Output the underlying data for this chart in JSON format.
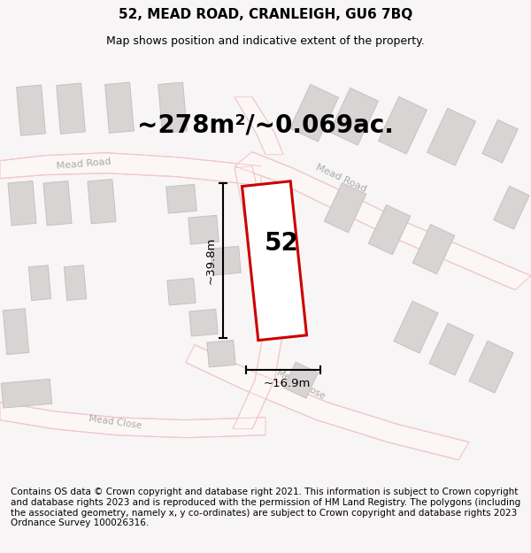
{
  "title_line1": "52, MEAD ROAD, CRANLEIGH, GU6 7BQ",
  "title_line2": "Map shows position and indicative extent of the property.",
  "area_text": "~278m²/~0.069ac.",
  "width_label": "~16.9m",
  "height_label": "~39.8m",
  "number_label": "52",
  "footer_text": "Contains OS data © Crown copyright and database right 2021. This information is subject to Crown copyright and database rights 2023 and is reproduced with the permission of HM Land Registry. The polygons (including the associated geometry, namely x, y co-ordinates) are subject to Crown copyright and database rights 2023 Ordnance Survey 100026316.",
  "bg_color": "#f7f5f5",
  "map_bg": "#ffffff",
  "road_color": "#f0c8c8",
  "road_fill": "#f8f0f0",
  "building_fill": "#d8d4d4",
  "building_edge": "#c8c0c0",
  "property_fill": "#ffffff",
  "property_edge": "#cc0000",
  "text_color_road": "#aaaaaa",
  "title_fontsize": 11,
  "subtitle_fontsize": 9,
  "area_fontsize": 20,
  "label_fontsize": 9.5,
  "number_fontsize": 20,
  "footer_fontsize": 7.5
}
